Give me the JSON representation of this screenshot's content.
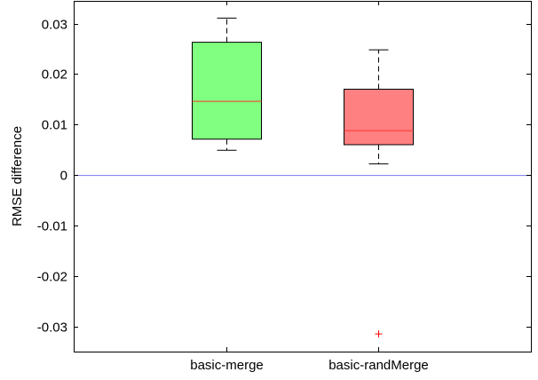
{
  "chart_data": {
    "type": "boxplot",
    "title": "",
    "xlabel": "",
    "ylabel": "RMSE difference",
    "ylim": [
      -0.035,
      0.0345
    ],
    "yticks": [
      -0.03,
      -0.02,
      -0.01,
      0,
      0.01,
      0.02,
      0.03
    ],
    "ytick_labels": [
      "-0.03",
      "-0.02",
      "-0.01",
      "0",
      "0.01",
      "0.02",
      "0.03"
    ],
    "grid": false,
    "reference_line": {
      "y": 0,
      "color": "#7777ee"
    },
    "categories": [
      "basic-merge",
      "basic-randMerge"
    ],
    "boxes": [
      {
        "category": "basic-merge",
        "whisker_low": 0.0049,
        "q1": 0.0071,
        "median": 0.0146,
        "q3": 0.0263,
        "whisker_high": 0.0311,
        "outliers": [],
        "fill": "#80ff80"
      },
      {
        "category": "basic-randMerge",
        "whisker_low": 0.0022,
        "q1": 0.006,
        "median": 0.0088,
        "q3": 0.017,
        "whisker_high": 0.0248,
        "outliers": [
          -0.0315
        ],
        "fill": "#ff8080"
      }
    ],
    "median_color": "#ff3333",
    "outlier_color": "#ff0000"
  }
}
